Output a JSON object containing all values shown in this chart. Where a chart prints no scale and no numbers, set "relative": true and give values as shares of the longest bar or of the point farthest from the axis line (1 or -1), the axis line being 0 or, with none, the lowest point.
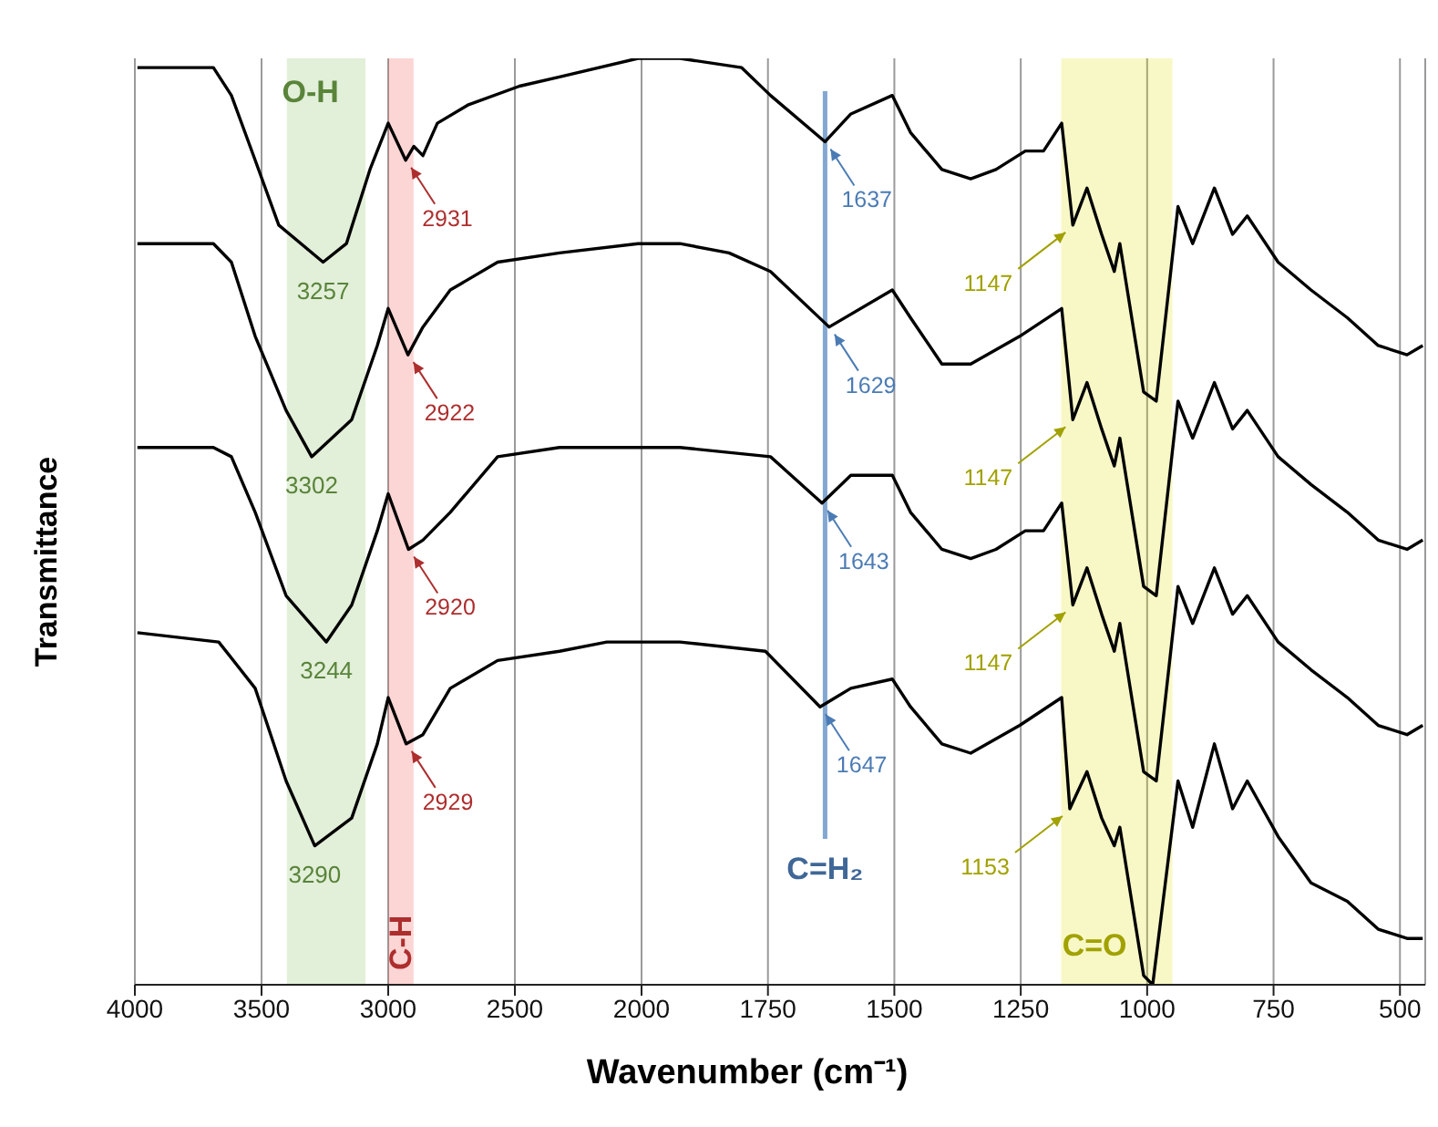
{
  "chart_data": [
    {
      "type": "line",
      "relative": true,
      "xlabel": "Wavenumber (cm⁻¹)",
      "ylabel": "Transmittance",
      "xlim": [
        4000,
        2000
      ],
      "xticks": [
        4000,
        3500,
        3000,
        2500,
        2000
      ],
      "grid": "x",
      "marker": "none",
      "line_style": "solid",
      "series": [
        {
          "color": "#000000",
          "x": [
            3990,
            3690,
            3619,
            3525,
            3432,
            3257,
            3165,
            3072,
            3000,
            2931,
            2899,
            2863,
            2806,
            2683,
            2482,
            2324,
            2014,
            2000
          ],
          "values": [
            0.99,
            0.99,
            0.96,
            0.89,
            0.82,
            0.78,
            0.8,
            0.88,
            0.93,
            0.89,
            0.905,
            0.895,
            0.93,
            0.95,
            0.97,
            0.98,
            1.0,
            1.0
          ]
        },
        {
          "color": "#000000",
          "x": [
            3990,
            3690,
            3619,
            3525,
            3403,
            3302,
            3144,
            3043,
            3000,
            2922,
            2863,
            2755,
            2568,
            2324,
            2014,
            2000
          ],
          "values": [
            0.8,
            0.8,
            0.78,
            0.7,
            0.62,
            0.57,
            0.61,
            0.69,
            0.73,
            0.68,
            0.71,
            0.75,
            0.78,
            0.79,
            0.8,
            0.8
          ]
        },
        {
          "color": "#000000",
          "x": [
            3990,
            3690,
            3619,
            3525,
            3403,
            3244,
            3144,
            3043,
            3000,
            2920,
            2863,
            2755,
            2568,
            2324,
            2014,
            2000
          ],
          "values": [
            0.58,
            0.58,
            0.57,
            0.51,
            0.42,
            0.37,
            0.41,
            0.49,
            0.53,
            0.47,
            0.48,
            0.51,
            0.57,
            0.58,
            0.58,
            0.58
          ]
        },
        {
          "color": "#000000",
          "x": [
            3990,
            3669,
            3525,
            3403,
            3290,
            3144,
            3043,
            3000,
            2929,
            2863,
            2755,
            2568,
            2324,
            2137,
            2014,
            2000
          ],
          "values": [
            0.38,
            0.37,
            0.32,
            0.22,
            0.15,
            0.18,
            0.26,
            0.31,
            0.26,
            0.27,
            0.32,
            0.35,
            0.36,
            0.37,
            0.37,
            0.37
          ]
        }
      ],
      "bands": [
        {
          "axis": "x",
          "from": 3400,
          "to": 3090,
          "label": "O-H",
          "color": "#7cb850"
        },
        {
          "axis": "x",
          "from": 3000,
          "to": 2900,
          "label": "C-H",
          "color": "#f04040"
        }
      ],
      "annotations": [
        {
          "text": "3257",
          "x": 3257,
          "y": 0.78
        },
        {
          "text": "2931",
          "x": 2931,
          "y": 0.89
        },
        {
          "text": "3302",
          "x": 3302,
          "y": 0.57
        },
        {
          "text": "2922",
          "x": 2922,
          "y": 0.68
        },
        {
          "text": "3244",
          "x": 3244,
          "y": 0.37
        },
        {
          "text": "2920",
          "x": 2920,
          "y": 0.47
        },
        {
          "text": "3290",
          "x": 3290,
          "y": 0.15
        },
        {
          "text": "2929",
          "x": 2929,
          "y": 0.26
        }
      ]
    },
    {
      "type": "line",
      "relative": true,
      "xlim": [
        2000,
        450
      ],
      "xticks": [
        1750,
        1500,
        1250,
        1000,
        750,
        500
      ],
      "grid": "x",
      "marker": "none",
      "line_style": "solid",
      "series": [
        {
          "color": "#000000",
          "x": [
            2000,
            1924,
            1802,
            1745,
            1637,
            1586,
            1504,
            1468,
            1406,
            1349,
            1299,
            1241,
            1205,
            1169,
            1147,
            1119,
            1090,
            1065,
            1054,
            1007,
            982,
            939,
            910,
            867,
            831,
            802,
            741,
            676,
            604,
            543,
            486,
            455
          ],
          "values": [
            1.0,
            1.0,
            0.99,
            0.96,
            0.91,
            0.94,
            0.96,
            0.92,
            0.88,
            0.87,
            0.88,
            0.9,
            0.9,
            0.93,
            0.82,
            0.86,
            0.81,
            0.77,
            0.8,
            0.64,
            0.63,
            0.84,
            0.8,
            0.86,
            0.81,
            0.83,
            0.78,
            0.75,
            0.72,
            0.69,
            0.68,
            0.69
          ]
        },
        {
          "color": "#000000",
          "x": [
            2000,
            1924,
            1827,
            1745,
            1629,
            1504,
            1468,
            1406,
            1349,
            1252,
            1169,
            1147,
            1119,
            1090,
            1065,
            1054,
            1007,
            982,
            939,
            910,
            867,
            831,
            802,
            741,
            676,
            604,
            543,
            486,
            455
          ],
          "values": [
            0.8,
            0.8,
            0.79,
            0.77,
            0.71,
            0.75,
            0.72,
            0.67,
            0.67,
            0.7,
            0.73,
            0.61,
            0.65,
            0.6,
            0.56,
            0.59,
            0.43,
            0.42,
            0.63,
            0.59,
            0.65,
            0.6,
            0.62,
            0.57,
            0.54,
            0.51,
            0.48,
            0.47,
            0.48
          ]
        },
        {
          "color": "#000000",
          "x": [
            2000,
            1924,
            1745,
            1643,
            1586,
            1504,
            1468,
            1406,
            1349,
            1299,
            1241,
            1205,
            1169,
            1147,
            1119,
            1090,
            1065,
            1054,
            1007,
            982,
            939,
            910,
            867,
            831,
            802,
            741,
            676,
            604,
            543,
            486,
            455
          ],
          "values": [
            0.58,
            0.58,
            0.57,
            0.52,
            0.55,
            0.55,
            0.51,
            0.47,
            0.46,
            0.47,
            0.49,
            0.49,
            0.52,
            0.41,
            0.45,
            0.4,
            0.36,
            0.39,
            0.23,
            0.22,
            0.43,
            0.39,
            0.45,
            0.4,
            0.42,
            0.37,
            0.34,
            0.31,
            0.28,
            0.27,
            0.28
          ]
        },
        {
          "color": "#000000",
          "x": [
            2000,
            1924,
            1755,
            1647,
            1586,
            1504,
            1468,
            1406,
            1349,
            1252,
            1169,
            1153,
            1119,
            1090,
            1065,
            1054,
            1007,
            989,
            939,
            910,
            867,
            831,
            802,
            741,
            676,
            604,
            543,
            486,
            455
          ],
          "values": [
            0.37,
            0.37,
            0.36,
            0.3,
            0.32,
            0.33,
            0.3,
            0.26,
            0.25,
            0.28,
            0.31,
            0.19,
            0.23,
            0.18,
            0.15,
            0.17,
            0.01,
            0.0,
            0.22,
            0.17,
            0.26,
            0.19,
            0.22,
            0.16,
            0.11,
            0.09,
            0.06,
            0.05,
            0.05
          ]
        }
      ],
      "bands": [
        {
          "axis": "x",
          "from": 1170,
          "to": 950,
          "label": "C=O",
          "color": "#e0e000"
        }
      ],
      "ref_lines": [
        {
          "axis": "x",
          "value": 1637,
          "label": "C=H₂",
          "color": "#4f81bd"
        }
      ],
      "annotations": [
        {
          "text": "1637",
          "x": 1637,
          "y": 0.91
        },
        {
          "text": "1147",
          "x": 1147,
          "y": 0.82
        },
        {
          "text": "1629",
          "x": 1629,
          "y": 0.71
        },
        {
          "text": "1147",
          "x": 1147,
          "y": 0.61
        },
        {
          "text": "1643",
          "x": 1643,
          "y": 0.52
        },
        {
          "text": "1147",
          "x": 1147,
          "y": 0.41
        },
        {
          "text": "1647",
          "x": 1647,
          "y": 0.3
        },
        {
          "text": "1153",
          "x": 1153,
          "y": 0.19
        }
      ]
    }
  ]
}
